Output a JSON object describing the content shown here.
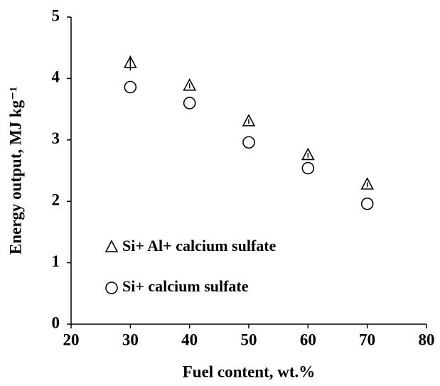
{
  "chart_data": {
    "type": "scatter",
    "x_label": "Fuel content, wt.%",
    "y_label": "Energy output, MJ kg⁻¹",
    "x": [
      30,
      40,
      50,
      60,
      70
    ],
    "series": [
      {
        "name": "Si+ Al+ calcium sulfate",
        "color": "#000000",
        "marker": "triangle",
        "values": [
          4.25,
          3.88,
          3.3,
          2.75,
          2.27
        ],
        "errors": [
          0.12,
          0.04,
          0.04,
          0.04,
          0.04
        ]
      },
      {
        "name": "Si+ calcium sulfate",
        "color": "#000000",
        "marker": "circle",
        "values": [
          3.86,
          3.6,
          2.96,
          2.54,
          1.96
        ]
      }
    ],
    "xlim": [
      20,
      80
    ],
    "xticks": [
      20,
      30,
      40,
      50,
      60,
      70,
      80
    ],
    "ylim": [
      0,
      5
    ],
    "yticks": [
      0,
      1,
      2,
      3,
      4,
      5
    ],
    "legend": "lower left"
  }
}
